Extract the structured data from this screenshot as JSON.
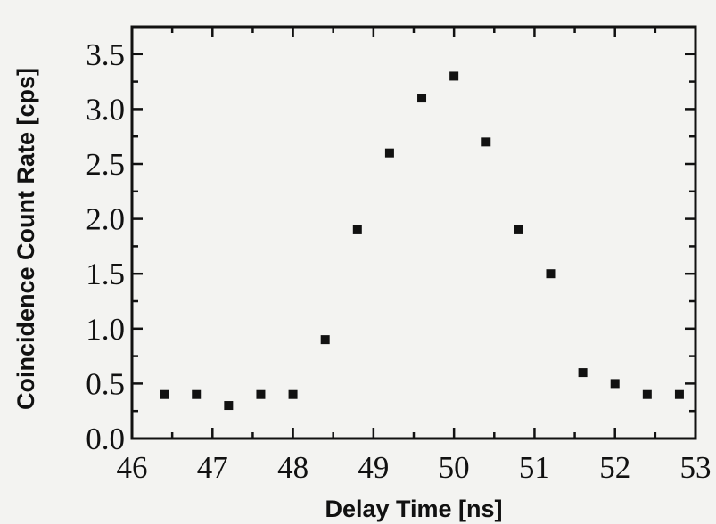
{
  "chart_data": {
    "type": "scatter",
    "title": "",
    "xlabel": "Delay Time [ns]",
    "ylabel": "Coincidence Count Rate [cps]",
    "xlim": [
      46,
      53
    ],
    "ylim": [
      0.0,
      3.75
    ],
    "xticks": [
      "46",
      "47",
      "48",
      "49",
      "50",
      "51",
      "52",
      "53"
    ],
    "yticks": [
      "0.0",
      "0.5",
      "1.0",
      "1.5",
      "2.0",
      "2.5",
      "3.0",
      "3.5"
    ],
    "grid": false,
    "marker": "square",
    "marker_color": "#111111",
    "x": [
      46.4,
      46.8,
      47.2,
      47.6,
      48.0,
      48.4,
      48.8,
      49.2,
      49.6,
      50.0,
      50.4,
      50.8,
      51.2,
      51.6,
      52.0,
      52.4,
      52.8
    ],
    "y": [
      0.4,
      0.4,
      0.3,
      0.4,
      0.4,
      0.9,
      1.9,
      2.6,
      3.1,
      3.3,
      2.7,
      1.9,
      1.5,
      0.6,
      0.5,
      0.4,
      0.4
    ]
  }
}
